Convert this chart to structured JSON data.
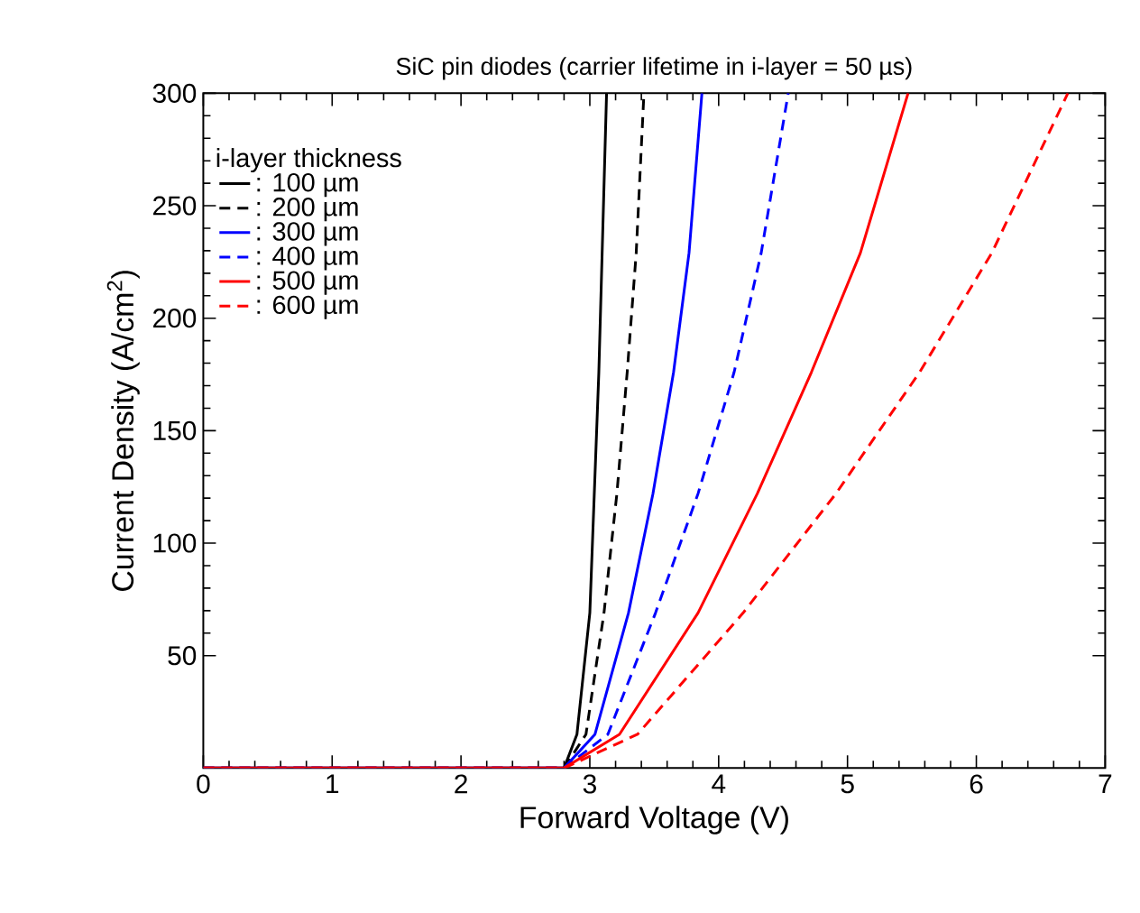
{
  "chart_data": {
    "type": "line",
    "title": "SiC pin diodes (carrier lifetime in i-layer = 50  µs)",
    "xlabel": "Forward Voltage (V)",
    "ylabel": "Current Density (A/cm$^{2}$)",
    "legend_title": "i-layer thickness",
    "legend": "top left",
    "grid": false,
    "marker": "none",
    "xlim": [
      0,
      7
    ],
    "ylim": [
      0,
      300
    ],
    "xticks": [
      0,
      1,
      2,
      3,
      4,
      5,
      6,
      7
    ],
    "yticks": [
      50,
      100,
      150,
      200,
      250,
      300
    ],
    "series": [
      {
        "name": ": 100 µm",
        "color": "#000000",
        "line_style": "solid",
        "x": [
          0,
          2.8,
          2.9,
          3.0,
          3.07,
          3.13
        ],
        "values": [
          0,
          0,
          15,
          69,
          176,
          300
        ]
      },
      {
        "name": ": 200 µm",
        "color": "#000000",
        "line_style": "dashed",
        "x": [
          0,
          2.8,
          2.97,
          3.11,
          3.21,
          3.29,
          3.36,
          3.42
        ],
        "values": [
          0,
          0,
          15,
          69,
          122,
          176,
          229,
          300
        ]
      },
      {
        "name": ": 300 µm",
        "color": "#0000ff",
        "line_style": "solid",
        "x": [
          0,
          2.8,
          3.04,
          3.3,
          3.49,
          3.65,
          3.77,
          3.87
        ],
        "values": [
          0,
          0,
          15,
          69,
          122,
          176,
          229,
          300
        ]
      },
      {
        "name": ": 400 µm",
        "color": "#0000ff",
        "line_style": "dashed",
        "x": [
          0,
          2.8,
          3.14,
          3.51,
          3.84,
          4.12,
          4.33,
          4.54
        ],
        "values": [
          0,
          0,
          15,
          69,
          122,
          176,
          229,
          300
        ]
      },
      {
        "name": ": 500 µm",
        "color": "#ff0000",
        "line_style": "solid",
        "x": [
          0,
          2.8,
          3.23,
          3.84,
          4.3,
          4.72,
          5.1,
          5.47
        ],
        "values": [
          0,
          0,
          15,
          69,
          122,
          176,
          229,
          300
        ]
      },
      {
        "name": ": 600 µm",
        "color": "#ff0000",
        "line_style": "dashed",
        "x": [
          0,
          2.8,
          3.37,
          4.19,
          4.91,
          5.56,
          6.12,
          6.71
        ],
        "values": [
          0,
          0,
          15,
          69,
          122,
          176,
          229,
          300
        ]
      }
    ]
  }
}
